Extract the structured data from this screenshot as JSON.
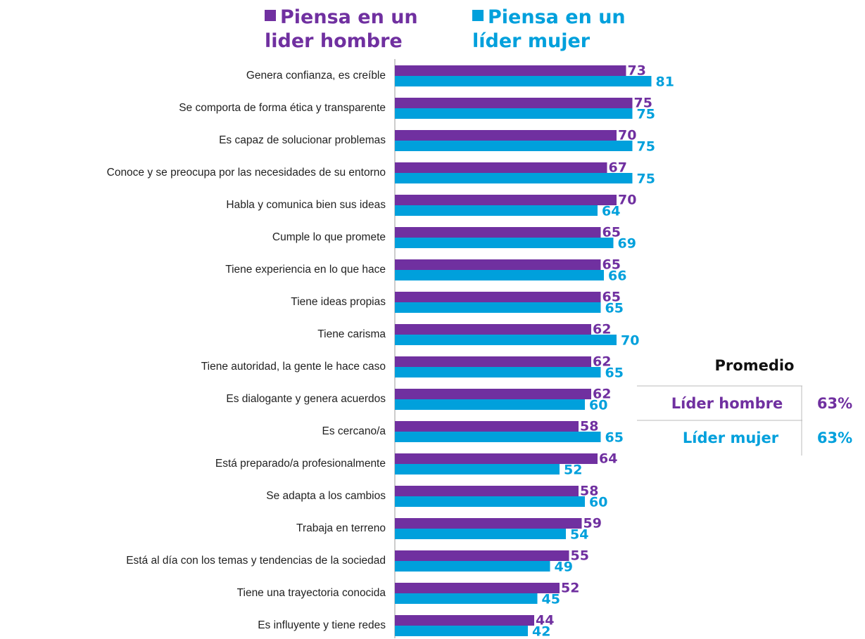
{
  "chart_data": {
    "type": "bar",
    "orientation": "horizontal",
    "categories": [
      "Genera confianza, es creíble",
      "Se comporta de forma ética y transparente",
      "Es capaz de solucionar problemas",
      "Conoce y se preocupa por las necesidades de su entorno",
      "Habla y comunica bien sus ideas",
      "Cumple lo que promete",
      "Tiene experiencia en lo que hace",
      "Tiene ideas propias",
      "Tiene carisma",
      "Tiene autoridad, la gente le hace caso",
      "Es dialogante y genera acuerdos",
      "Es cercano/a",
      "Está preparado/a profesionalmente",
      "Se adapta a los cambios",
      "Trabaja en terreno",
      "Está al día con los temas y tendencias de la sociedad",
      "Tiene una trayectoria conocida",
      "Es influyente y tiene redes"
    ],
    "series": [
      {
        "name": "Piensa en un lider hombre",
        "color": "#7030a0",
        "values": [
          73,
          75,
          70,
          67,
          70,
          65,
          65,
          65,
          62,
          62,
          62,
          58,
          64,
          58,
          59,
          55,
          52,
          44
        ]
      },
      {
        "name": "Piensa en un líder mujer",
        "color": "#00a0dc",
        "values": [
          81,
          75,
          75,
          75,
          64,
          69,
          66,
          65,
          70,
          65,
          60,
          65,
          52,
          60,
          54,
          49,
          45,
          42
        ]
      }
    ]
  },
  "summary": {
    "title": "Promedio",
    "rows": [
      [
        "Líder hombre",
        "63%"
      ],
      [
        "Líder mujer",
        "63%"
      ]
    ]
  }
}
